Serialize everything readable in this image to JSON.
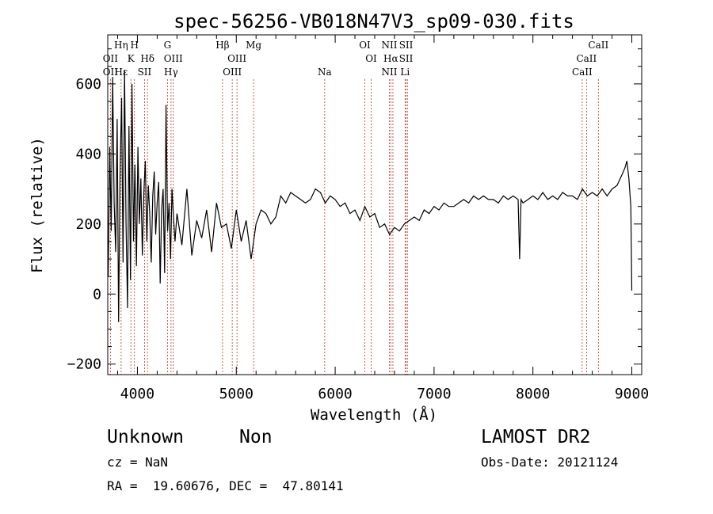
{
  "chart_data": {
    "type": "line",
    "title": "spec-56256-VB018N47V3_sp09-030.fits",
    "xlabel": "Wavelength (Å)",
    "ylabel": "Flux (relative)",
    "xlim": [
      3700,
      9100
    ],
    "ylim": [
      -230,
      740
    ],
    "xticks": [
      4000,
      5000,
      6000,
      7000,
      8000,
      9000
    ],
    "yticks": [
      -200,
      0,
      200,
      400,
      600
    ],
    "grid": false,
    "legend": "none",
    "line_color": "#000000",
    "marker_line_color": "#c0392b",
    "series": [
      {
        "x": [
          3705,
          3720,
          3735,
          3750,
          3765,
          3780,
          3795,
          3810,
          3825,
          3840,
          3855,
          3870,
          3885,
          3900,
          3915,
          3930,
          3945,
          3960,
          3975,
          3990,
          4005,
          4020,
          4035,
          4050,
          4065,
          4080,
          4095,
          4110,
          4125,
          4140,
          4155,
          4170,
          4185,
          4200,
          4215,
          4230,
          4245,
          4260,
          4275,
          4290,
          4305,
          4320,
          4335,
          4350,
          4365,
          4380,
          4400,
          4450,
          4500,
          4550,
          4600,
          4650,
          4700,
          4750,
          4800,
          4850,
          4900,
          4950,
          5000,
          5050,
          5100,
          5150,
          5200,
          5250,
          5300,
          5350,
          5400,
          5450,
          5500,
          5550,
          5600,
          5650,
          5700,
          5750,
          5800,
          5850,
          5900,
          5950,
          6000,
          6050,
          6100,
          6150,
          6200,
          6250,
          6300,
          6350,
          6400,
          6450,
          6500,
          6550,
          6600,
          6650,
          6700,
          6750,
          6800,
          6850,
          6900,
          6950,
          7000,
          7050,
          7100,
          7150,
          7200,
          7250,
          7300,
          7350,
          7400,
          7450,
          7500,
          7550,
          7600,
          7650,
          7700,
          7750,
          7800,
          7850,
          7865,
          7880,
          7900,
          7950,
          8000,
          8050,
          8100,
          8150,
          8200,
          8250,
          8300,
          8350,
          8400,
          8450,
          8500,
          8550,
          8600,
          8650,
          8700,
          8750,
          8800,
          8850,
          8900,
          8930,
          8950,
          8970,
          8990,
          9000
        ],
        "y": [
          50,
          420,
          180,
          620,
          260,
          120,
          500,
          -80,
          350,
          560,
          90,
          640,
          200,
          -40,
          480,
          40,
          600,
          150,
          370,
          80,
          420,
          200,
          330,
          110,
          290,
          380,
          150,
          310,
          230,
          90,
          280,
          350,
          170,
          260,
          320,
          30,
          240,
          300,
          60,
          540,
          180,
          260,
          100,
          300,
          220,
          150,
          230,
          140,
          300,
          110,
          210,
          160,
          240,
          120,
          260,
          190,
          200,
          130,
          240,
          150,
          210,
          100,
          200,
          240,
          230,
          200,
          220,
          280,
          260,
          290,
          280,
          270,
          260,
          270,
          300,
          290,
          260,
          280,
          270,
          250,
          260,
          230,
          240,
          210,
          250,
          220,
          230,
          190,
          200,
          170,
          190,
          180,
          200,
          210,
          220,
          210,
          240,
          230,
          250,
          240,
          260,
          250,
          250,
          260,
          270,
          260,
          280,
          270,
          280,
          270,
          270,
          260,
          280,
          270,
          280,
          270,
          100,
          270,
          260,
          270,
          280,
          270,
          290,
          270,
          280,
          270,
          290,
          280,
          280,
          270,
          300,
          280,
          290,
          280,
          300,
          280,
          300,
          310,
          340,
          360,
          380,
          330,
          250,
          10
        ]
      }
    ],
    "line_marks": [
      {
        "wl": 3727,
        "rows": [
          2,
          4
        ],
        "labels": [
          "OII",
          "OII"
        ]
      },
      {
        "wl": 3835,
        "rows": [
          1,
          3
        ],
        "labels": [
          "Hη",
          "Hε"
        ]
      },
      {
        "wl": 3934,
        "rows": [
          2
        ],
        "labels": [
          "K"
        ]
      },
      {
        "wl": 3970,
        "rows": [
          1
        ],
        "labels": [
          "H"
        ]
      },
      {
        "wl": 4072,
        "rows": [
          4
        ],
        "labels": [
          "SII"
        ]
      },
      {
        "wl": 4102,
        "rows": [
          2
        ],
        "labels": [
          "Hδ"
        ]
      },
      {
        "wl": 4304,
        "rows": [
          1
        ],
        "labels": [
          "G"
        ]
      },
      {
        "wl": 4340,
        "rows": [
          4
        ],
        "labels": [
          "Hγ"
        ]
      },
      {
        "wl": 4363,
        "rows": [
          2
        ],
        "labels": [
          "OIII"
        ]
      },
      {
        "wl": 4861,
        "rows": [
          1
        ],
        "labels": [
          "Hβ"
        ]
      },
      {
        "wl": 4959,
        "rows": [
          4
        ],
        "labels": [
          "OIII"
        ]
      },
      {
        "wl": 5007,
        "rows": [
          2
        ],
        "labels": [
          "OIII"
        ]
      },
      {
        "wl": 5175,
        "rows": [
          1
        ],
        "labels": [
          "Mg"
        ]
      },
      {
        "wl": 5894,
        "rows": [
          4
        ],
        "labels": [
          "Na"
        ]
      },
      {
        "wl": 6300,
        "rows": [
          1
        ],
        "labels": [
          "OI"
        ]
      },
      {
        "wl": 6364,
        "rows": [
          2
        ],
        "labels": [
          "OI"
        ]
      },
      {
        "wl": 6548,
        "rows": [
          1,
          4
        ],
        "labels": [
          "NII",
          "NII"
        ]
      },
      {
        "wl": 6563,
        "rows": [
          2
        ],
        "labels": [
          "Hα"
        ]
      },
      {
        "wl": 6584,
        "rows": [],
        "labels": []
      },
      {
        "wl": 6707,
        "rows": [
          4
        ],
        "labels": [
          "Li"
        ]
      },
      {
        "wl": 6717,
        "rows": [
          1,
          2
        ],
        "labels": [
          "SII",
          "SII"
        ]
      },
      {
        "wl": 6731,
        "rows": [],
        "labels": []
      },
      {
        "wl": 8498,
        "rows": [
          4
        ],
        "labels": [
          "CaII"
        ]
      },
      {
        "wl": 8542,
        "rows": [
          2
        ],
        "labels": [
          "CaII"
        ]
      },
      {
        "wl": 8662,
        "rows": [
          1
        ],
        "labels": [
          "CaII"
        ]
      }
    ]
  },
  "info": {
    "class": "Unknown",
    "subclass": "Non",
    "survey": "LAMOST DR2",
    "cz": "cz = NaN",
    "obs_date": "Obs-Date: 20121124",
    "coords": "RA =  19.60676, DEC =  47.80141"
  }
}
